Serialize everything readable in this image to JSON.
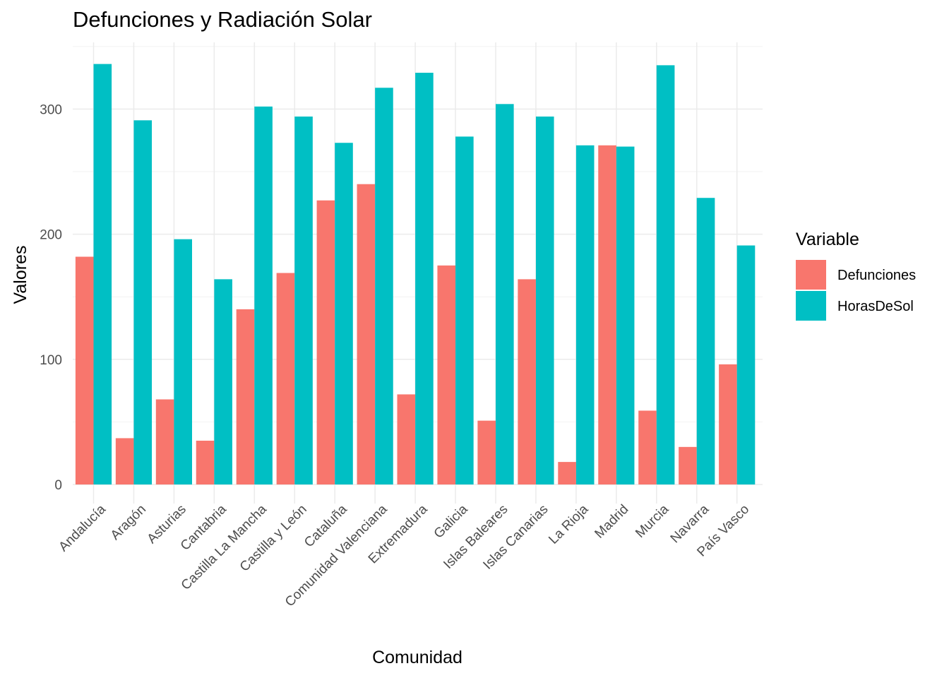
{
  "chart_data": {
    "type": "bar",
    "title": "Defunciones y Radiación Solar",
    "xlabel": "Comunidad",
    "ylabel": "Valores",
    "ylim": [
      0,
      350
    ],
    "yticks": [
      0,
      100,
      200,
      300
    ],
    "grid": true,
    "legend_title": "Variable",
    "legend_position": "right",
    "categories": [
      "Andalucía",
      "Aragón",
      "Asturias",
      "Cantabria",
      "Castilla La Mancha",
      "Castilla y León",
      "Cataluña",
      "Comunidad Valenciana",
      "Extremadura",
      "Galicia",
      "Islas Baleares",
      "Islas Canarias",
      "La Rioja",
      "Madrid",
      "Murcia",
      "Navarra",
      "País Vasco"
    ],
    "series": [
      {
        "name": "Defunciones",
        "color": "#F8766D",
        "values": [
          182,
          37,
          68,
          35,
          140,
          169,
          227,
          240,
          72,
          175,
          51,
          164,
          18,
          271,
          59,
          30,
          96
        ]
      },
      {
        "name": "HorasDeSol",
        "color": "#00BFC4",
        "values": [
          336,
          291,
          196,
          164,
          302,
          294,
          273,
          317,
          329,
          278,
          304,
          294,
          271,
          270,
          335,
          229,
          191
        ]
      }
    ]
  }
}
